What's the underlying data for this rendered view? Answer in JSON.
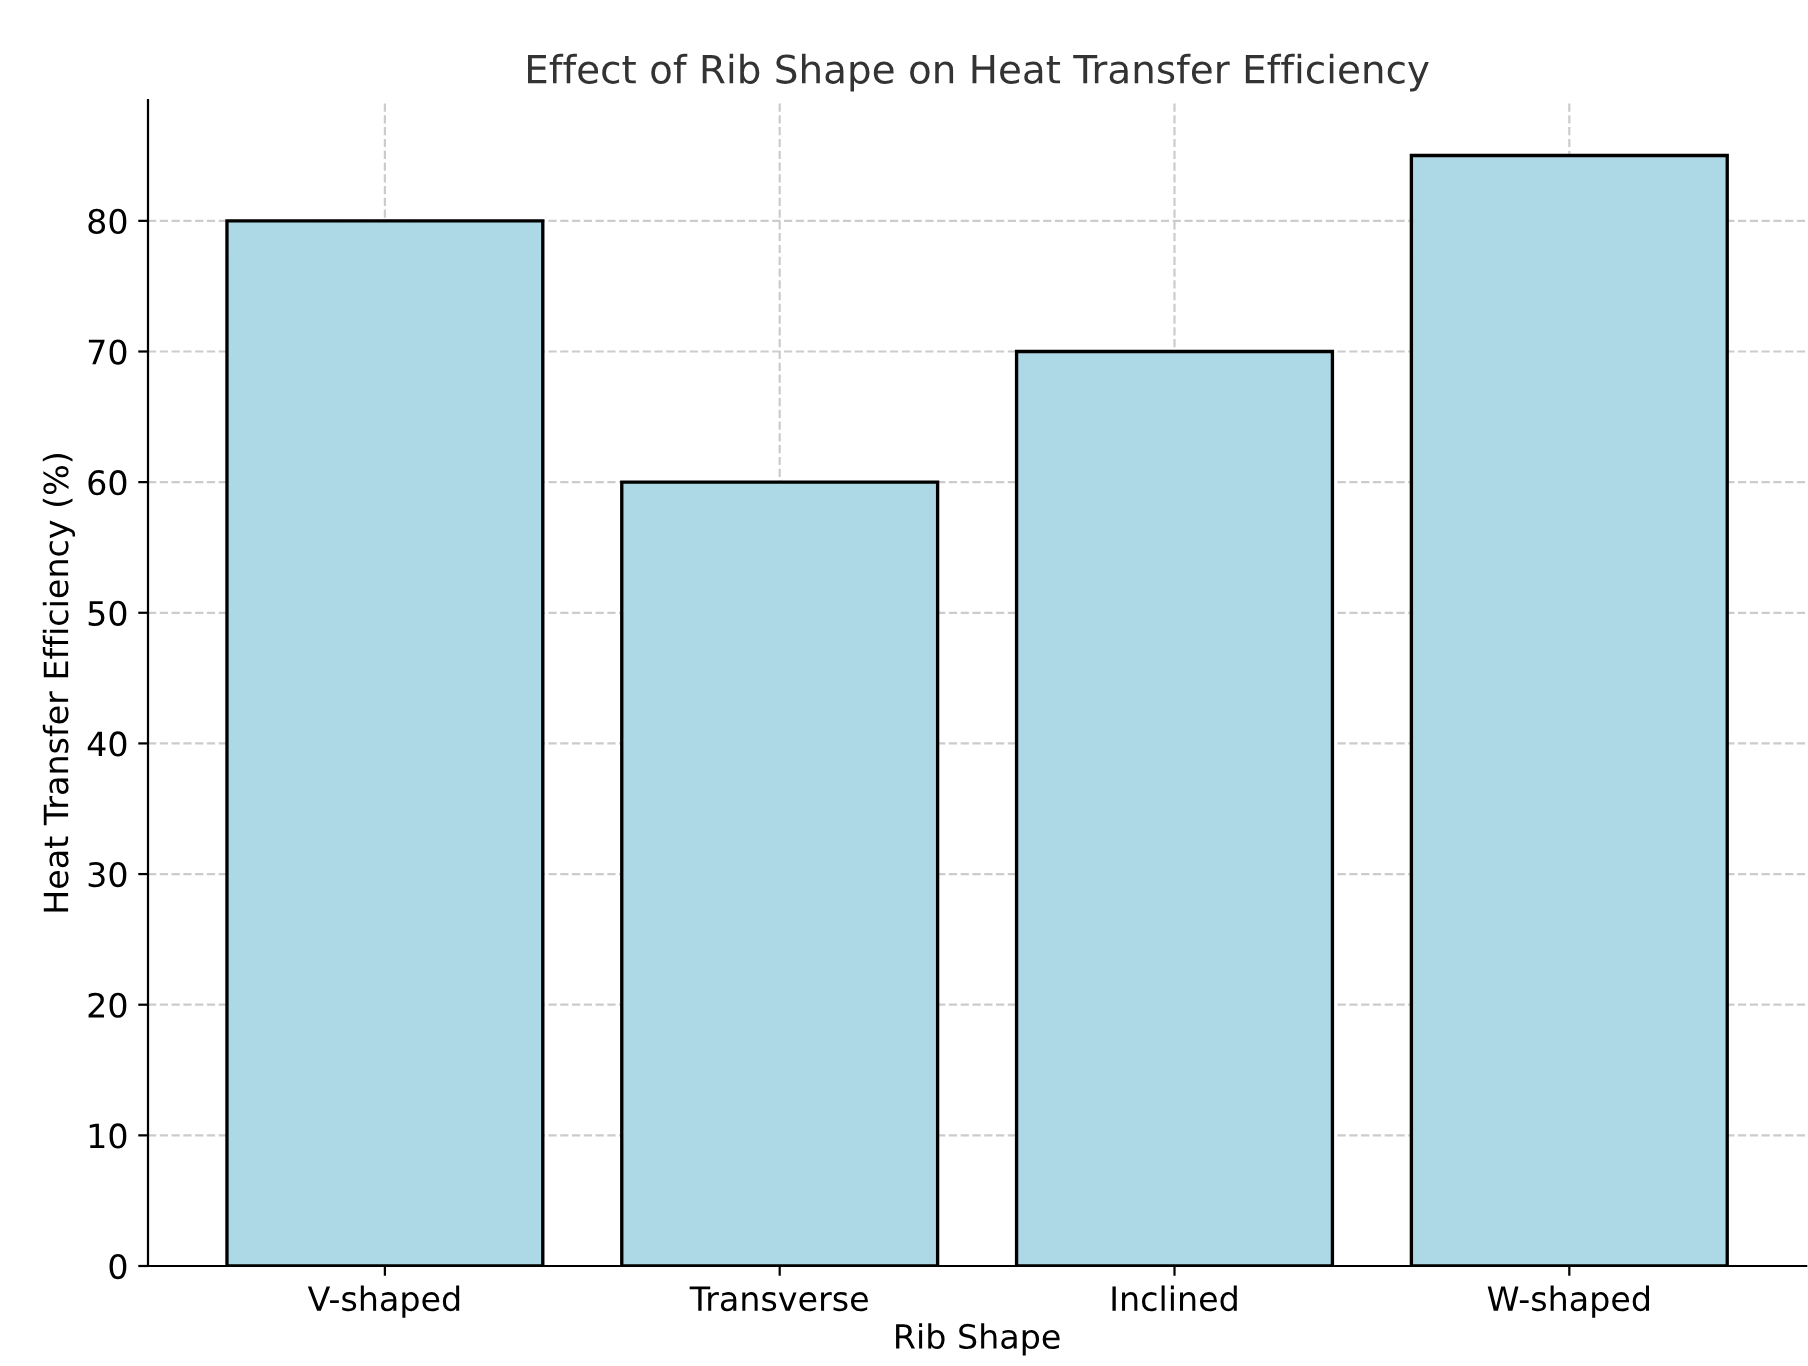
{
  "chart_data": {
    "type": "bar",
    "title": "Effect of Rib Shape on Heat Transfer Efficiency",
    "xlabel": "Rib Shape",
    "ylabel": "Heat Transfer Efficiency (%)",
    "categories": [
      "V-shaped",
      "Transverse",
      "Inclined",
      "W-shaped"
    ],
    "values": [
      80,
      60,
      70,
      85
    ],
    "color": "#add8e6",
    "ylim": [
      0,
      89.25
    ],
    "yticks": [
      0,
      10,
      20,
      30,
      40,
      50,
      60,
      70,
      80
    ],
    "grid": true
  }
}
